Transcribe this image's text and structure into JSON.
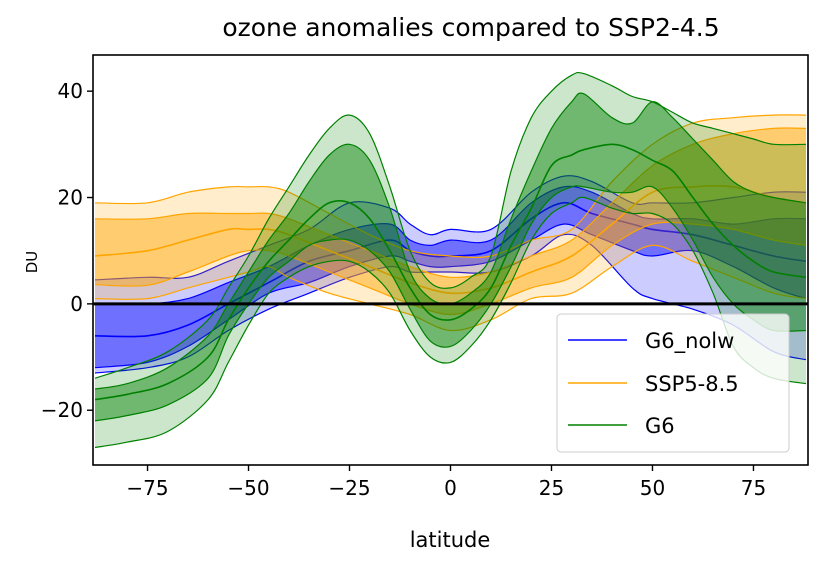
{
  "chart_data": {
    "type": "area",
    "title": "ozone anomalies compared to SSP2-4.5",
    "xlabel": "latitude",
    "ylabel": "DU",
    "xlim": [
      -88.5,
      88.5
    ],
    "ylim": [
      -30.3,
      46.8
    ],
    "xticks": [
      -75,
      -50,
      -25,
      0,
      25,
      50,
      75
    ],
    "xtick_labels": [
      "−75",
      "−50",
      "−25",
      "0",
      "25",
      "50",
      "75"
    ],
    "yticks": [
      -20,
      0,
      20,
      40
    ],
    "ytick_labels": [
      "−20",
      "0",
      "20",
      "40"
    ],
    "grid": false,
    "legend_position": "lower right",
    "reference_line": 0,
    "band_description": [
      "min",
      "p25",
      "median",
      "p75",
      "max"
    ],
    "series": [
      {
        "name": "G6_nolw",
        "color": "#0000ff",
        "x": [
          -88,
          -75,
          -65,
          -55,
          -45,
          -35,
          -25,
          -15,
          -10,
          -5,
          0,
          10,
          20,
          28,
          35,
          45,
          50,
          60,
          70,
          80,
          88
        ],
        "min": [
          -13,
          -12,
          -10,
          -5,
          -1,
          2,
          5,
          7,
          6,
          6,
          6,
          6,
          9,
          13,
          11,
          3,
          1,
          -1,
          -4,
          -9,
          -10.5
        ],
        "p25": [
          -12,
          -11,
          -8,
          -3,
          2,
          4,
          7,
          9,
          8,
          7,
          7,
          8,
          12,
          15,
          13,
          10,
          9,
          10,
          7,
          3,
          1
        ],
        "median": [
          -6,
          -6,
          -4,
          0,
          4,
          8,
          10,
          12,
          10,
          9,
          9,
          10,
          16,
          19,
          17,
          15,
          14,
          13,
          11,
          9,
          8
        ],
        "p75": [
          0,
          0,
          1,
          4,
          7,
          11,
          14,
          15,
          12,
          11,
          12,
          12,
          19,
          22,
          21,
          17,
          16,
          16,
          15,
          16,
          16
        ],
        "max": [
          4.5,
          5,
          5,
          8,
          11,
          14,
          19,
          18,
          15,
          13,
          14,
          14,
          21,
          24,
          23,
          19,
          19,
          19,
          20,
          21,
          21
        ]
      },
      {
        "name": "SSP5-8.5",
        "color": "#ffa500",
        "x": [
          -88,
          -75,
          -65,
          -55,
          -50,
          -45,
          -40,
          -30,
          -20,
          -10,
          0,
          10,
          20,
          30,
          40,
          50,
          60,
          70,
          80,
          88
        ],
        "min": [
          1,
          1,
          3,
          5,
          6,
          7,
          5,
          2,
          0,
          -2,
          -5,
          -3,
          1,
          2,
          7,
          11,
          8,
          5,
          2,
          1
        ],
        "p25": [
          3.6,
          3.5,
          6,
          9,
          10,
          10,
          9,
          6,
          3,
          0,
          -2,
          0,
          3,
          5,
          11,
          15,
          15,
          14,
          12,
          11
        ],
        "median": [
          9,
          10,
          12,
          14,
          14,
          14,
          13,
          10,
          7,
          4,
          2,
          3,
          6,
          9,
          15,
          21,
          22,
          22,
          20,
          19
        ],
        "p75": [
          16,
          16,
          17,
          17,
          17,
          17,
          16,
          13,
          10,
          7,
          5,
          6,
          9,
          12,
          19,
          26,
          30,
          32,
          33,
          33
        ],
        "max": [
          19,
          19,
          21,
          22,
          22,
          22,
          21,
          17,
          13,
          10,
          9,
          9,
          12,
          14,
          23,
          30,
          34,
          35,
          35.5,
          35.5
        ]
      },
      {
        "name": "G6",
        "color": "#008000",
        "x": [
          -88,
          -80,
          -70,
          -60,
          -55,
          -50,
          -45,
          -40,
          -35,
          -30,
          -25,
          -20,
          -15,
          -10,
          -5,
          0,
          5,
          10,
          15,
          20,
          25,
          30,
          33,
          40,
          45,
          50,
          55,
          60,
          65,
          70,
          75,
          80,
          88
        ],
        "min": [
          -27,
          -26,
          -24,
          -18,
          -11,
          -4,
          2,
          5,
          7,
          8,
          8,
          6,
          2,
          -5,
          -10,
          -11,
          -8,
          -3,
          4,
          12,
          17,
          19,
          20,
          18,
          17,
          17,
          15,
          10,
          2,
          -8,
          -12,
          -14,
          -15
        ],
        "p25": [
          -22,
          -21,
          -19,
          -14,
          -6,
          0,
          5,
          8,
          11,
          12,
          12,
          10,
          6,
          -1,
          -7,
          -8,
          -5,
          0,
          7,
          15,
          20,
          22,
          22,
          21,
          21,
          22,
          18,
          12,
          5,
          0,
          -3,
          -5,
          -5
        ],
        "median": [
          -18,
          -17,
          -15,
          -10,
          -3,
          3,
          8,
          12,
          16,
          19,
          19,
          16,
          10,
          3,
          -2,
          -3,
          -1,
          3,
          11,
          18,
          26,
          28,
          29,
          30,
          29,
          27,
          25,
          20,
          15,
          11,
          8,
          6,
          5
        ],
        "p75": [
          -16,
          -15,
          -12,
          -6,
          0,
          6,
          12,
          17,
          23,
          28,
          30,
          27,
          18,
          6,
          1,
          0,
          2,
          6,
          16,
          25,
          33,
          38,
          39.5,
          35,
          34,
          38,
          35,
          31,
          27,
          23,
          21,
          20,
          19
        ],
        "max": [
          -14,
          -12,
          -9,
          -3,
          3,
          9,
          16,
          22,
          28,
          33,
          35.5,
          32,
          22,
          10,
          4,
          3,
          5,
          9,
          25,
          35,
          40,
          43,
          43.3,
          41,
          39,
          38,
          36,
          34,
          33,
          32,
          31,
          30,
          30
        ]
      }
    ]
  }
}
